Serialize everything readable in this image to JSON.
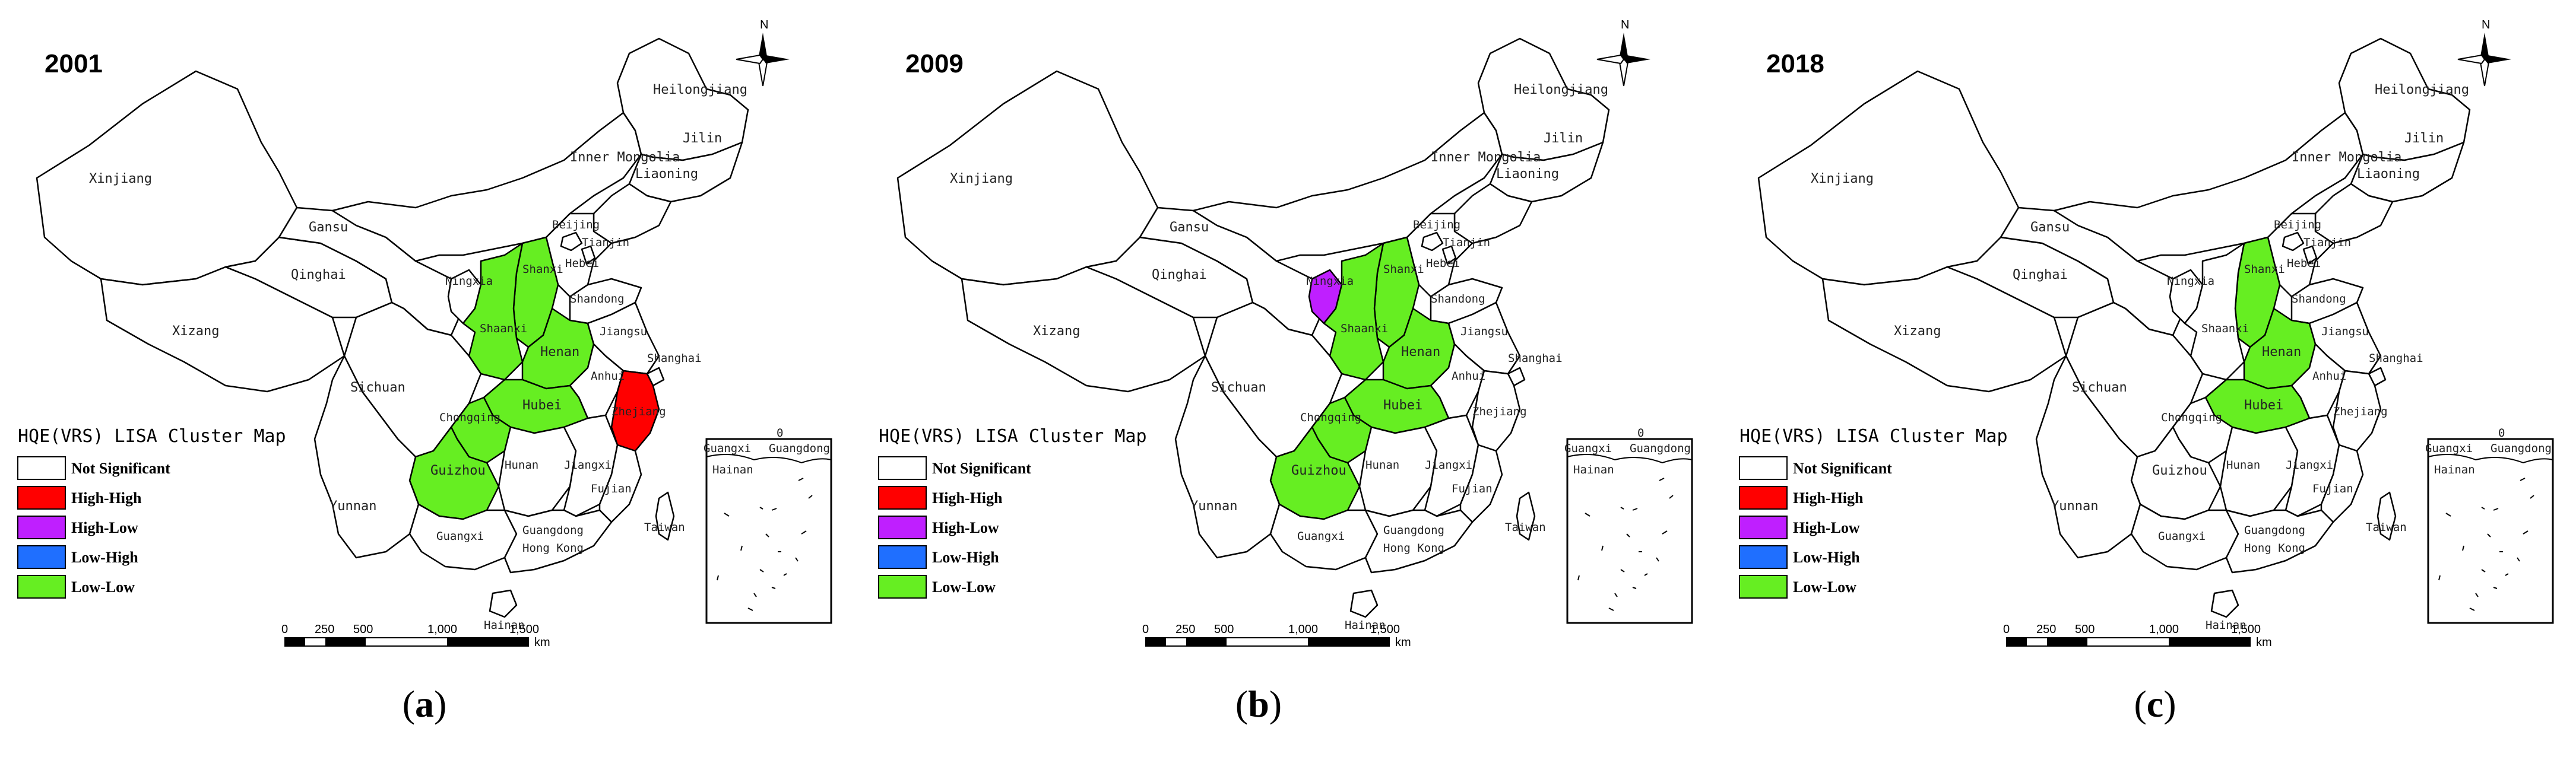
{
  "colors": {
    "not_significant": "#ffffff",
    "high_high": "#ff0000",
    "high_low": "#bf1fff",
    "low_high": "#1f6fff",
    "low_low": "#66ee22",
    "outline": "#000000"
  },
  "legend": {
    "title": "HQE(VRS) LISA Cluster Map",
    "items": [
      "Not Significant",
      "High-High",
      "High-Low",
      "Low-High",
      "Low-Low"
    ]
  },
  "scale_bar": {
    "ticks": [
      "0",
      "250",
      "500",
      "1,000",
      "1,500"
    ],
    "unit": "km"
  },
  "north_label": "N",
  "inset": {
    "tick": "0",
    "labels": [
      "Guangxi",
      "Guangdong",
      "Hainan"
    ]
  },
  "province_labels": {
    "heilongjiang": "Heilongjiang",
    "jilin": "Jilin",
    "liaoning": "Liaoning",
    "inner_mongolia": "Inner Mongolia",
    "beijing": "Beijing",
    "tianjin": "Tianjin",
    "hebei": "Hebei",
    "shanxi": "Shanxi",
    "shandong": "Shandong",
    "xinjiang": "Xinjiang",
    "gansu": "Gansu",
    "qinghai": "Qinghai",
    "xizang": "Xizang",
    "ningxia": "Ningxia",
    "shaanxi": "Shaanxi",
    "henan": "Henan",
    "hubei": "Hubei",
    "anhui": "Anhui",
    "jiangsu": "Jiangsu",
    "shanghai": "Shanghai",
    "zhejiang": "Zhejiang",
    "sichuan": "Sichuan",
    "chongqing": "Chongqing",
    "guizhou": "Guizhou",
    "hunan": "Hunan",
    "jiangxi": "Jiangxi",
    "fujian": "Fujian",
    "taiwan": "Taiwan",
    "yunnan": "Yunnan",
    "guangxi": "Guangxi",
    "guangdong": "Guangdong",
    "hong_kong": "Hong Kong",
    "hainan": "Hainan"
  },
  "panels": [
    {
      "year": "2001",
      "caption": "a",
      "clusters": {
        "shanxi": "low_low",
        "shaanxi": "low_low",
        "henan": "low_low",
        "hubei": "low_low",
        "chongqing": "low_low",
        "guizhou": "low_low",
        "zhejiang": "high_high"
      }
    },
    {
      "year": "2009",
      "caption": "b",
      "clusters": {
        "ningxia": "high_low",
        "shanxi": "low_low",
        "shaanxi": "low_low",
        "henan": "low_low",
        "hubei": "low_low",
        "chongqing": "low_low",
        "guizhou": "low_low"
      }
    },
    {
      "year": "2018",
      "caption": "c",
      "clusters": {
        "shanxi": "low_low",
        "henan": "low_low",
        "hubei": "low_low"
      }
    }
  ]
}
